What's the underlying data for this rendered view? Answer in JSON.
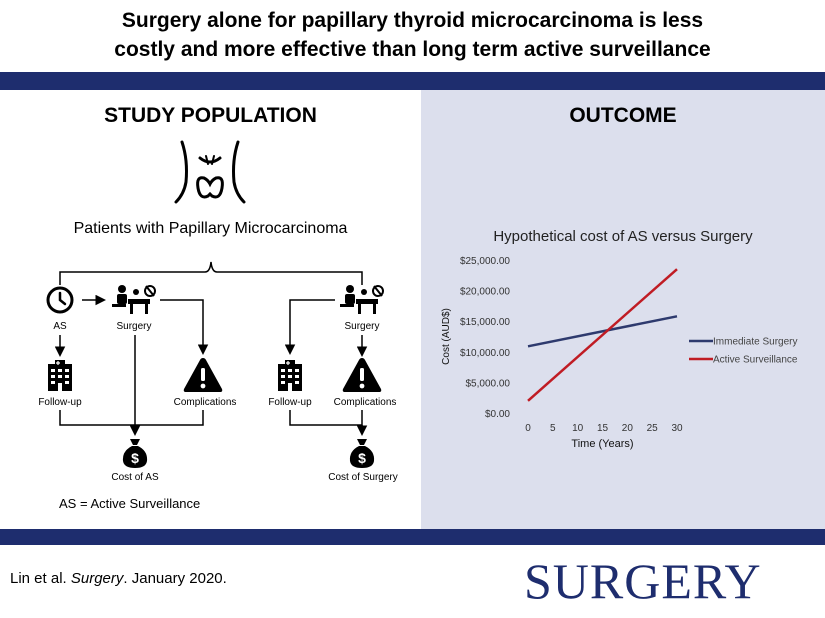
{
  "title_line1": "Surgery alone for papillary thyroid microcarcinoma is less",
  "title_line2": "costly and more effective than long term active surveillance",
  "study_population": {
    "heading": "STUDY POPULATION",
    "patients_label": "Patients with Papillary Microcarcinoma",
    "as_label": "AS",
    "surgery_label_left": "Surgery",
    "surgery_label_right": "Surgery",
    "followup_label_left": "Follow-up",
    "followup_label_right": "Follow-up",
    "complications_label_left": "Complications",
    "complications_label_right": "Complications",
    "cost_as_label": "Cost of AS",
    "cost_surgery_label": "Cost of Surgery",
    "legend_note": "AS = Active Surveillance"
  },
  "outcome": {
    "heading": "OUTCOME"
  },
  "chart_data": {
    "type": "line",
    "title": "Hypothetical cost of AS versus Surgery",
    "xlabel": "Time (Years)",
    "ylabel": "Cost (AUD$)",
    "x": [
      0,
      30
    ],
    "x_ticks": [
      0,
      5,
      10,
      15,
      20,
      25,
      30
    ],
    "y_ticks": [
      0,
      5000,
      10000,
      15000,
      20000,
      25000
    ],
    "y_tick_labels": [
      "$0.00",
      "$5,000.00",
      "$10,000.00",
      "$15,000.00",
      "$20,000.00",
      "$25,000.00"
    ],
    "ylim": [
      0,
      25000
    ],
    "legend_position": "right",
    "series": [
      {
        "name": "Immediate Surgery",
        "color": "#2e3a6e",
        "values": [
          10900,
          15800
        ]
      },
      {
        "name": "Active Surveillance",
        "color": "#c01c24",
        "values": [
          2000,
          23500
        ]
      }
    ]
  },
  "citation": {
    "authors": "Lin et al. ",
    "journal_italic": "Surgery",
    "date": ". January 2020."
  },
  "journal_logo": "SURGERY",
  "colors": {
    "navy": "#1e2d6e",
    "panel": "#dcdfed",
    "red": "#c01c24"
  }
}
